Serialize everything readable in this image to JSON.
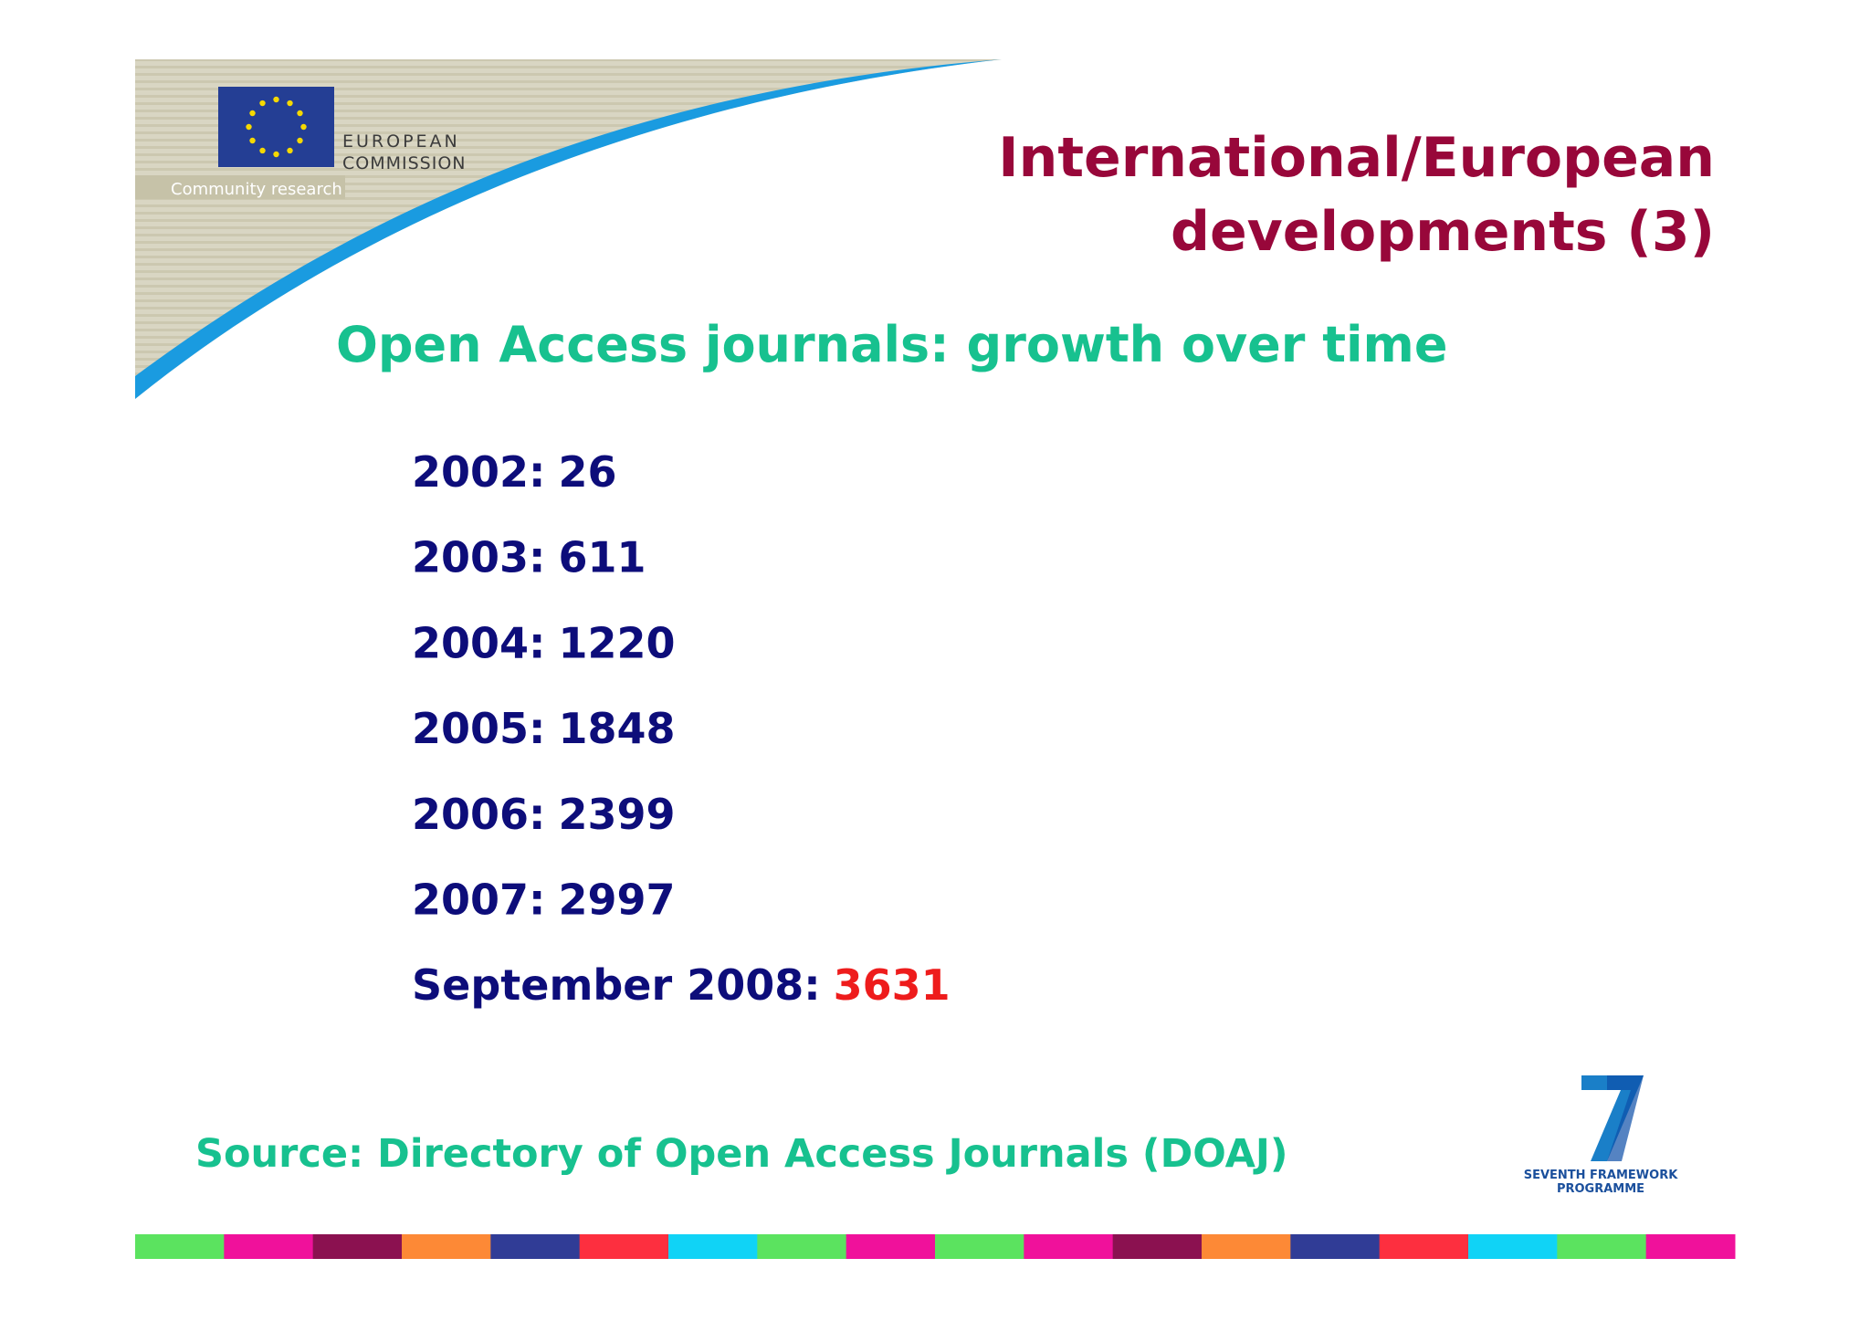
{
  "logo": {
    "name_lines": [
      "EUROPEAN",
      "COMMISSION"
    ],
    "tagline": "Community research"
  },
  "title_lines": [
    "International/European",
    "developments (3)"
  ],
  "subtitle": "Open Access journals: growth over time",
  "items": [
    {
      "label": "2002:",
      "value": 26
    },
    {
      "label": "2003:",
      "value": 611
    },
    {
      "label": "2004:",
      "value": 1220
    },
    {
      "label": "2005:",
      "value": 1848
    },
    {
      "label": "2006:",
      "value": 2399
    },
    {
      "label": "2007:",
      "value": 2997
    },
    {
      "label": "September 2008:",
      "value": 3631
    }
  ],
  "source": "Source: Directory of Open Access Journals (DOAJ)",
  "fp7_logo": [
    "SEVENTH FRAMEWORK",
    "PROGRAMME"
  ]
}
